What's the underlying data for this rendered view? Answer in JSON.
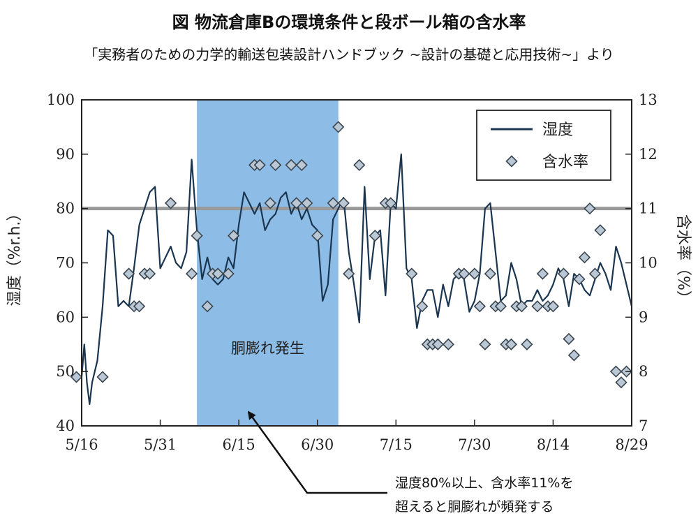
{
  "title": "図 物流倉庫Bの環境条件と段ボール箱の含水率",
  "subtitle": "「実務者のための力学的輸送包装設計ハンドブック ~設計の基礎と応用技術~」より",
  "chart_data": {
    "type": "line",
    "x_axis": {
      "ticks": [
        "5/16",
        "5/31",
        "6/15",
        "6/30",
        "7/15",
        "7/30",
        "8/14",
        "8/29"
      ],
      "range_days": [
        0,
        105
      ]
    },
    "y_left": {
      "label": "湿度（%r.h.）",
      "range": [
        40,
        100
      ],
      "ticks": [
        40,
        50,
        60,
        70,
        80,
        90,
        100
      ]
    },
    "y_right": {
      "label": "含水率（%）",
      "range": [
        7,
        13
      ],
      "ticks": [
        7,
        8,
        9,
        10,
        11,
        12,
        13
      ]
    },
    "grid": false,
    "legend": {
      "placement": "top-right",
      "items": [
        {
          "name": "湿度",
          "marker": "line"
        },
        {
          "name": "含水率",
          "marker": "diamond"
        }
      ]
    },
    "reference_line": {
      "axis": "left",
      "value": 80,
      "color": "#9a9a9a"
    },
    "shaded_region": {
      "x_start_day": 22,
      "x_end_day": 49,
      "label": "胴膨れ発生",
      "color": "#8dbde6"
    },
    "annotation": {
      "lines": [
        "湿度80%以上、含水率11%を",
        "超えると胴膨れが頻発する"
      ]
    },
    "series": [
      {
        "name": "湿度",
        "axis": "left",
        "color": "#1a3550",
        "points": [
          [
            0,
            49
          ],
          [
            0.5,
            55
          ],
          [
            1,
            48
          ],
          [
            1.5,
            44
          ],
          [
            2,
            48
          ],
          [
            3,
            52
          ],
          [
            4,
            62
          ],
          [
            5,
            76
          ],
          [
            6,
            75
          ],
          [
            7,
            62
          ],
          [
            8,
            63
          ],
          [
            9,
            62
          ],
          [
            10,
            69
          ],
          [
            11,
            77
          ],
          [
            12,
            80
          ],
          [
            13,
            83
          ],
          [
            14,
            84
          ],
          [
            15,
            69
          ],
          [
            16,
            71
          ],
          [
            17,
            73
          ],
          [
            18,
            70
          ],
          [
            19,
            69
          ],
          [
            20,
            72
          ],
          [
            21,
            89
          ],
          [
            22,
            76
          ],
          [
            23,
            67
          ],
          [
            24,
            71
          ],
          [
            25,
            67
          ],
          [
            26,
            66
          ],
          [
            27,
            67
          ],
          [
            28,
            71
          ],
          [
            29,
            69
          ],
          [
            30,
            77
          ],
          [
            31,
            83
          ],
          [
            32,
            81
          ],
          [
            33,
            79
          ],
          [
            34,
            81
          ],
          [
            35,
            76
          ],
          [
            36,
            78
          ],
          [
            37,
            79
          ],
          [
            38,
            82
          ],
          [
            39,
            83
          ],
          [
            40,
            79
          ],
          [
            41,
            81
          ],
          [
            42,
            78
          ],
          [
            43,
            80
          ],
          [
            44,
            77
          ],
          [
            45,
            76
          ],
          [
            46,
            63
          ],
          [
            47,
            66
          ],
          [
            48,
            78
          ],
          [
            49,
            80
          ],
          [
            50,
            82
          ],
          [
            51,
            72
          ],
          [
            52,
            66
          ],
          [
            53,
            59
          ],
          [
            54,
            84
          ],
          [
            55,
            67
          ],
          [
            56,
            75
          ],
          [
            57,
            76
          ],
          [
            58,
            64
          ],
          [
            59,
            81
          ],
          [
            60,
            80
          ],
          [
            61,
            90
          ],
          [
            62,
            69
          ],
          [
            63,
            67
          ],
          [
            64,
            58
          ],
          [
            65,
            63
          ],
          [
            66,
            65
          ],
          [
            67,
            65
          ],
          [
            68,
            60
          ],
          [
            69,
            66
          ],
          [
            70,
            62
          ],
          [
            71,
            67
          ],
          [
            72,
            68
          ],
          [
            73,
            67
          ],
          [
            74,
            61
          ],
          [
            75,
            63
          ],
          [
            76,
            68
          ],
          [
            77,
            80
          ],
          [
            78,
            81
          ],
          [
            79,
            72
          ],
          [
            80,
            63
          ],
          [
            81,
            64
          ],
          [
            82,
            70
          ],
          [
            83,
            67
          ],
          [
            84,
            62
          ],
          [
            85,
            63
          ],
          [
            86,
            63
          ],
          [
            87,
            65
          ],
          [
            88,
            63
          ],
          [
            89,
            64
          ],
          [
            90,
            66
          ],
          [
            91,
            69
          ],
          [
            92,
            67
          ],
          [
            93,
            62
          ],
          [
            94,
            68
          ],
          [
            95,
            67
          ],
          [
            96,
            65
          ],
          [
            97,
            64
          ],
          [
            98,
            67
          ],
          [
            99,
            70
          ],
          [
            100,
            68
          ],
          [
            101,
            65
          ],
          [
            102,
            73
          ],
          [
            103,
            70
          ],
          [
            104,
            66
          ],
          [
            105,
            62
          ]
        ]
      },
      {
        "name": "含水率",
        "axis": "right",
        "color": "#b9c8d4",
        "points": [
          [
            -1,
            7.9
          ],
          [
            4,
            7.9
          ],
          [
            9,
            9.8
          ],
          [
            10,
            9.2
          ],
          [
            11,
            9.2
          ],
          [
            12,
            9.8
          ],
          [
            13,
            9.8
          ],
          [
            17,
            11.1
          ],
          [
            21,
            9.8
          ],
          [
            22,
            10.5
          ],
          [
            24,
            9.2
          ],
          [
            25,
            9.8
          ],
          [
            26,
            9.8
          ],
          [
            28,
            9.8
          ],
          [
            29,
            10.5
          ],
          [
            33,
            11.8
          ],
          [
            34,
            11.8
          ],
          [
            36,
            11.1
          ],
          [
            37,
            11.8
          ],
          [
            40,
            11.8
          ],
          [
            41,
            11.1
          ],
          [
            42,
            11.8
          ],
          [
            43,
            11.1
          ],
          [
            45,
            10.5
          ],
          [
            48,
            11.1
          ],
          [
            49,
            12.5
          ],
          [
            50,
            11.1
          ],
          [
            51,
            9.8
          ],
          [
            53,
            11.8
          ],
          [
            56,
            10.5
          ],
          [
            58,
            11.1
          ],
          [
            59,
            11.1
          ],
          [
            63,
            9.8
          ],
          [
            65,
            9.2
          ],
          [
            66,
            8.5
          ],
          [
            67,
            8.5
          ],
          [
            68,
            8.5
          ],
          [
            70,
            8.5
          ],
          [
            72,
            9.8
          ],
          [
            73,
            9.8
          ],
          [
            75,
            9.8
          ],
          [
            76,
            9.2
          ],
          [
            77,
            8.5
          ],
          [
            78,
            9.8
          ],
          [
            79,
            9.2
          ],
          [
            80,
            9.2
          ],
          [
            81,
            8.5
          ],
          [
            82,
            8.5
          ],
          [
            83,
            9.2
          ],
          [
            84,
            9.2
          ],
          [
            85,
            8.5
          ],
          [
            87,
            9.2
          ],
          [
            88,
            9.8
          ],
          [
            89,
            9.2
          ],
          [
            90,
            9.2
          ],
          [
            92,
            9.8
          ],
          [
            93,
            8.6
          ],
          [
            94,
            8.3
          ],
          [
            95,
            9.7
          ],
          [
            96,
            10.1
          ],
          [
            97,
            11.0
          ],
          [
            98,
            9.8
          ],
          [
            99,
            10.6
          ],
          [
            102,
            8.0
          ],
          [
            103,
            7.8
          ],
          [
            104,
            8.0
          ]
        ]
      }
    ]
  }
}
